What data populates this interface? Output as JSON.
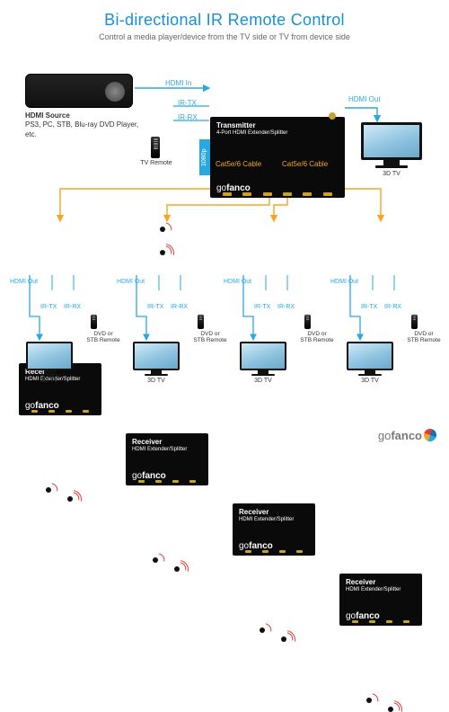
{
  "colors": {
    "blue": "#2aa9e0",
    "orange": "#f5a623",
    "black": "#111111",
    "red": "#e53935",
    "text": "#333333",
    "title_blue": "#1a8fd4"
  },
  "header": {
    "title": "Bi-directional IR Remote Control",
    "subtitle": "Control a media player/device from the TV side or TV from device side"
  },
  "source": {
    "label_line1": "HDMI Source",
    "label_line2": "PS3, PC, STB, Blu-ray DVD Player, etc."
  },
  "transmitter": {
    "title": "Transmitter",
    "subtitle": "4-Port HDMI Extender/Splitter",
    "logo": "gofanco",
    "badge": "1080p",
    "labels": {
      "hdmi_in": "HDMI In",
      "ir_tx": "IR-TX",
      "ir_rx": "IR-RX",
      "tv_remote": "TV Remote",
      "cat1": "Cat5e/6 Cable",
      "cat2": "Cat5e/6 Cable",
      "hdmi_out_top": "HDMI Out",
      "top_tv": "3D TV"
    }
  },
  "receiver_template": {
    "title": "Receiver",
    "subtitle": "HDMI Extender/Splitter",
    "logo": "gofanco",
    "ir_tx": "IR-TX",
    "ir_rx": "IR-RX",
    "hdmi_out": "HDMI Out",
    "tv_label": "3D TV",
    "remote1": "DVD or",
    "remote2": "STB Remote"
  },
  "receiver_x": [
    21,
    140,
    259,
    378
  ],
  "footer_logo": "gofanco"
}
